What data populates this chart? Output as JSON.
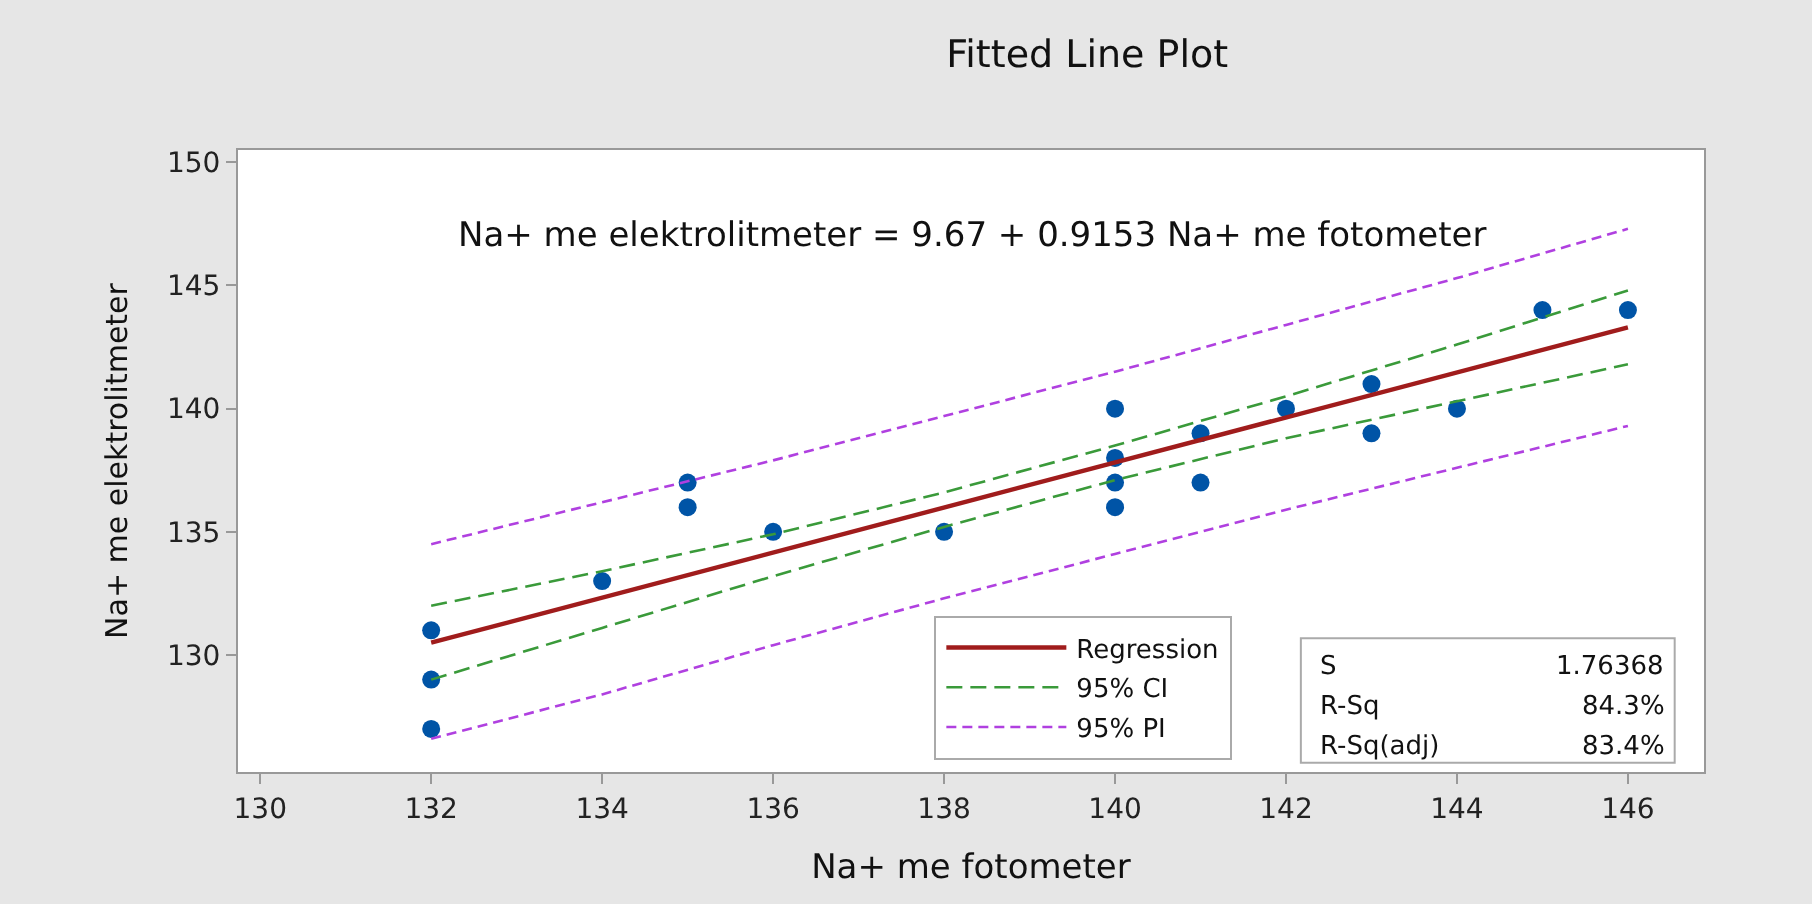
{
  "chart_data": {
    "type": "scatter",
    "title": "Fitted Line Plot",
    "xlabel": "Na+ me fotometer",
    "ylabel": "Na+ me elektrolitmeter",
    "annotations": [
      "Na+ me elektrolitmeter = 9.67 + 0.9153 Na+ me fotometer",
      "S 1.76368",
      "R-Sq 84.3%",
      "R-Sq(adj) 83.4%"
    ],
    "xlim": [
      129.74,
      146.89
    ],
    "xticks": [
      130,
      132,
      134,
      136,
      138,
      140,
      142,
      144,
      146
    ],
    "ylim": [
      125.25,
      150.5
    ],
    "yticks": [
      130,
      135,
      140,
      145,
      150
    ],
    "grid": false,
    "legend": "bottom right",
    "series": [
      {
        "marker": "circle",
        "color": "#0054a6",
        "x": [
          132,
          132,
          132,
          134,
          135,
          135,
          136,
          138,
          140,
          140,
          140,
          140,
          141,
          141,
          142,
          143,
          143,
          144,
          145,
          146
        ],
        "values": [
          131,
          129,
          127,
          133,
          137,
          136,
          135,
          135,
          140,
          138,
          137,
          136,
          139,
          137,
          140,
          141,
          139,
          140,
          144,
          144
        ]
      },
      {
        "type": "line",
        "name": "Regression",
        "color": "#a01c1c",
        "line_style": "solid",
        "x": [
          132,
          146
        ],
        "values": [
          130.5,
          143.3
        ]
      },
      {
        "type": "line",
        "name": "95% CI",
        "color": "#3a9a3a",
        "line_style": "dashed",
        "x": [
          132,
          134,
          136,
          138,
          140,
          142,
          144,
          146
        ],
        "values": [
          132.0,
          133.4,
          134.9,
          136.6,
          138.5,
          140.5,
          142.6,
          144.8
        ]
      },
      {
        "type": "line",
        "color": "#3a9a3a",
        "line_style": "dashed",
        "x": [
          132,
          134,
          136,
          138,
          140,
          142,
          144,
          146
        ],
        "values": [
          129.0,
          131.1,
          133.2,
          135.2,
          137.1,
          138.8,
          140.3,
          141.8
        ]
      },
      {
        "type": "line",
        "name": "95% PI",
        "color": "#b040e0",
        "line_style": "dotted",
        "x": [
          132,
          134,
          136,
          138,
          140,
          142,
          144,
          146
        ],
        "values": [
          134.5,
          136.2,
          137.9,
          139.7,
          141.5,
          143.4,
          145.3,
          147.3
        ]
      },
      {
        "type": "line",
        "color": "#b040e0",
        "line_style": "dotted",
        "x": [
          132,
          134,
          136,
          138,
          140,
          142,
          144,
          146
        ],
        "values": [
          126.6,
          128.4,
          130.4,
          132.3,
          134.1,
          135.9,
          137.6,
          139.3
        ]
      }
    ]
  }
}
